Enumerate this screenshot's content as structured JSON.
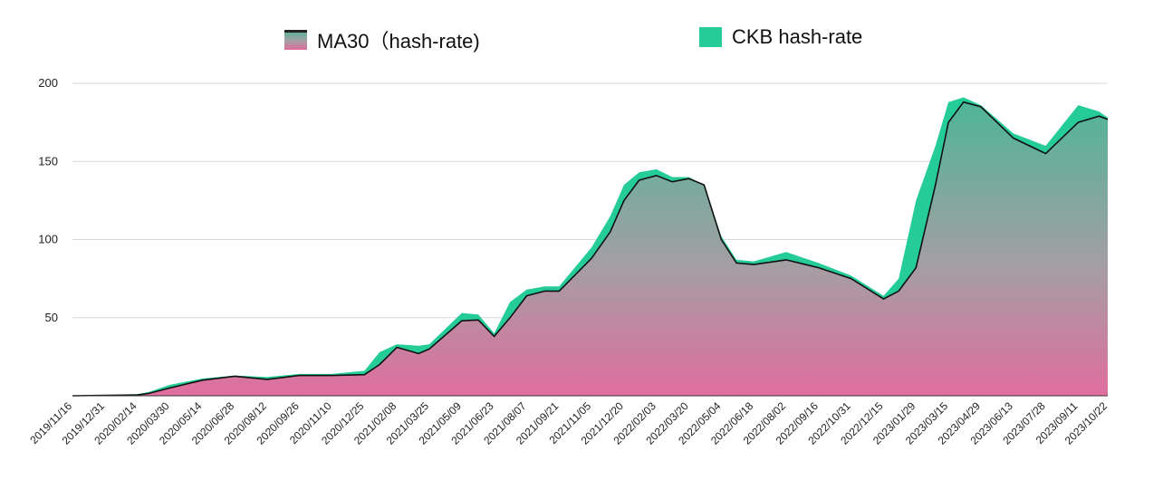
{
  "legend": {
    "ma_label": "MA30（hash-rate)",
    "ckb_label": "CKB hash-rate"
  },
  "colors": {
    "ckb_fill": "#25cc98",
    "ma_gradient_top": "#4fb597",
    "ma_gradient_mid": "#a39fa2",
    "ma_gradient_bottom": "#e06e9f",
    "ma_line": "#111111",
    "grid": "#d8d8d8"
  },
  "chart_data": {
    "type": "area",
    "title": "",
    "xlabel": "",
    "ylabel": "",
    "ylim": [
      0,
      200
    ],
    "y_ticks": [
      50,
      100,
      150,
      200
    ],
    "grid": true,
    "legend_position": "top",
    "x_tick_labels": [
      "2019/11/16",
      "2019/12/31",
      "2020/02/14",
      "2020/03/30",
      "2020/05/14",
      "2020/06/28",
      "2020/08/12",
      "2020/09/26",
      "2020/11/10",
      "2020/12/25",
      "2021/02/08",
      "2021/03/25",
      "2021/05/09",
      "2021/06/23",
      "2021/08/07",
      "2021/09/21",
      "2021/11/05",
      "2021/12/20",
      "2022/02/03",
      "2022/03/20",
      "2022/05/04",
      "2022/06/18",
      "2022/08/02",
      "2022/09/16",
      "2022/10/31",
      "2022/12/15",
      "2023/01/29",
      "2023/03/15",
      "2023/04/29",
      "2023/06/13",
      "2023/07/28",
      "2023/09/11",
      "2023/10/22"
    ],
    "series": [
      {
        "name": "MA30（hash-rate)",
        "points": [
          [
            "2019/11/16",
            0
          ],
          [
            "2019/12/31",
            0.3
          ],
          [
            "2020/02/14",
            0.5
          ],
          [
            "2020/03/01",
            1.5
          ],
          [
            "2020/03/30",
            5
          ],
          [
            "2020/05/14",
            10
          ],
          [
            "2020/06/28",
            12.5
          ],
          [
            "2020/08/12",
            10.5
          ],
          [
            "2020/09/26",
            13
          ],
          [
            "2020/11/10",
            13
          ],
          [
            "2020/12/25",
            13.5
          ],
          [
            "2021/01/15",
            20
          ],
          [
            "2021/02/08",
            31
          ],
          [
            "2021/03/10",
            27
          ],
          [
            "2021/03/25",
            30
          ],
          [
            "2021/05/09",
            48
          ],
          [
            "2021/06/01",
            48.5
          ],
          [
            "2021/06/23",
            38
          ],
          [
            "2021/07/15",
            50
          ],
          [
            "2021/08/07",
            64
          ],
          [
            "2021/09/01",
            67
          ],
          [
            "2021/09/21",
            67
          ],
          [
            "2021/11/05",
            88
          ],
          [
            "2021/12/01",
            105
          ],
          [
            "2021/12/20",
            125
          ],
          [
            "2022/01/10",
            138
          ],
          [
            "2022/02/03",
            141
          ],
          [
            "2022/02/25",
            137
          ],
          [
            "2022/03/20",
            139
          ],
          [
            "2022/04/10",
            135
          ],
          [
            "2022/05/04",
            100
          ],
          [
            "2022/05/25",
            85
          ],
          [
            "2022/06/18",
            84
          ],
          [
            "2022/08/02",
            87
          ],
          [
            "2022/09/16",
            82
          ],
          [
            "2022/10/31",
            75
          ],
          [
            "2022/12/15",
            62
          ],
          [
            "2023/01/05",
            67
          ],
          [
            "2023/01/29",
            82
          ],
          [
            "2023/02/25",
            135
          ],
          [
            "2023/03/15",
            175
          ],
          [
            "2023/04/05",
            188
          ],
          [
            "2023/04/29",
            185
          ],
          [
            "2023/06/13",
            165
          ],
          [
            "2023/07/28",
            155
          ],
          [
            "2023/09/11",
            175
          ],
          [
            "2023/10/10",
            179
          ],
          [
            "2023/10/22",
            177
          ]
        ]
      },
      {
        "name": "CKB hash-rate",
        "points": [
          [
            "2019/11/16",
            0
          ],
          [
            "2019/12/31",
            0.5
          ],
          [
            "2020/02/14",
            1
          ],
          [
            "2020/03/01",
            2.5
          ],
          [
            "2020/03/30",
            7
          ],
          [
            "2020/05/14",
            11
          ],
          [
            "2020/06/28",
            13
          ],
          [
            "2020/08/12",
            12
          ],
          [
            "2020/09/26",
            14
          ],
          [
            "2020/11/10",
            14
          ],
          [
            "2020/12/25",
            16
          ],
          [
            "2021/01/15",
            28
          ],
          [
            "2021/02/08",
            33
          ],
          [
            "2021/03/10",
            32
          ],
          [
            "2021/03/25",
            33
          ],
          [
            "2021/05/09",
            53
          ],
          [
            "2021/06/01",
            52
          ],
          [
            "2021/06/23",
            40
          ],
          [
            "2021/07/15",
            60
          ],
          [
            "2021/08/07",
            68
          ],
          [
            "2021/09/01",
            70
          ],
          [
            "2021/09/21",
            70
          ],
          [
            "2021/11/05",
            95
          ],
          [
            "2021/12/01",
            115
          ],
          [
            "2021/12/20",
            135
          ],
          [
            "2022/01/10",
            143
          ],
          [
            "2022/02/03",
            145
          ],
          [
            "2022/02/25",
            140
          ],
          [
            "2022/03/20",
            140
          ],
          [
            "2022/04/10",
            135
          ],
          [
            "2022/05/04",
            102
          ],
          [
            "2022/05/25",
            87
          ],
          [
            "2022/06/18",
            86
          ],
          [
            "2022/08/02",
            92
          ],
          [
            "2022/09/16",
            85
          ],
          [
            "2022/10/31",
            77
          ],
          [
            "2022/12/15",
            64
          ],
          [
            "2023/01/05",
            75
          ],
          [
            "2023/01/29",
            125
          ],
          [
            "2023/02/25",
            160
          ],
          [
            "2023/03/15",
            188
          ],
          [
            "2023/04/05",
            191
          ],
          [
            "2023/04/29",
            186
          ],
          [
            "2023/06/13",
            168
          ],
          [
            "2023/07/28",
            160
          ],
          [
            "2023/09/11",
            186
          ],
          [
            "2023/10/10",
            182
          ],
          [
            "2023/10/22",
            178
          ]
        ]
      }
    ]
  }
}
